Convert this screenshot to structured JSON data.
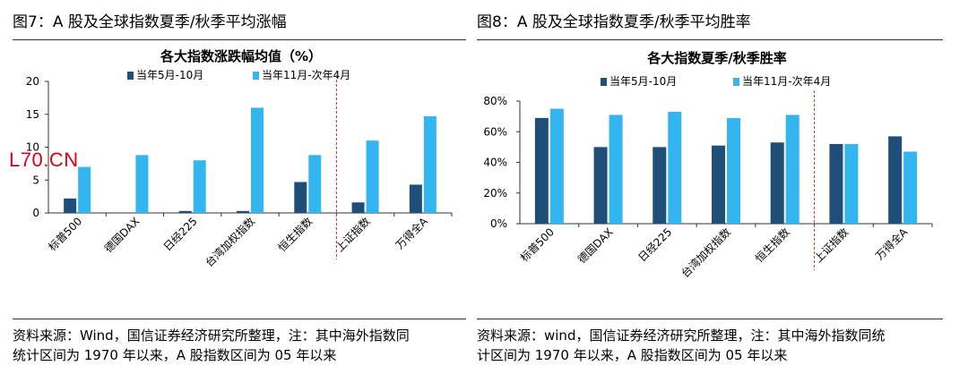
{
  "watermark": "L70.CN",
  "figures": [
    {
      "fig_title": "图7：A 股及全球指数夏季/秋季平均涨幅",
      "source_line1": "资料来源：Wind，国信证券经济研究所整理，注：其中海外指数同",
      "source_line2": "统计区间为 1970 年以来，A 股指数区间为 05 年以来"
    },
    {
      "fig_title": "图8：A 股及全球指数夏季/秋季平均胜率",
      "source_line1": "资料来源：wind，国信证券经济研究所整理，注：其中海外指数同统",
      "source_line2": "计区间为 1970 年以来，A 股指数区间为 05 年以来"
    }
  ],
  "colors": {
    "series1": "#1f4e79",
    "series2": "#33b5ef",
    "divider": "#c0392b"
  },
  "chart_data": [
    {
      "type": "bar",
      "title": "各大指数涨跌幅均值（%）",
      "categories": [
        "标普500",
        "德国DAX",
        "日经225",
        "台湾加权指数",
        "恒生指数",
        "上证指数",
        "万得全A"
      ],
      "series": [
        {
          "name": "当年5月-10月",
          "values": [
            2.2,
            0.0,
            0.3,
            0.3,
            4.7,
            1.6,
            4.3
          ]
        },
        {
          "name": "当年11月-次年4月",
          "values": [
            7.0,
            8.8,
            8.0,
            16.0,
            8.8,
            11.0,
            14.7
          ]
        }
      ],
      "yticks": [
        "0",
        "5",
        "10",
        "15",
        "20"
      ],
      "ylim": [
        0,
        20
      ],
      "legend": "top",
      "divider_after_category": 4
    },
    {
      "type": "bar",
      "title": "各大指数夏季/秋季胜率",
      "categories": [
        "标普500",
        "德国DAX",
        "日经225",
        "台湾加权指数",
        "恒生指数",
        "上证指数",
        "万得全A"
      ],
      "series": [
        {
          "name": "当年5月-10月",
          "values": [
            69,
            50,
            50,
            51,
            53,
            52,
            57
          ]
        },
        {
          "name": "当年11月-次年4月",
          "values": [
            75,
            71,
            73,
            69,
            71,
            52,
            47
          ]
        }
      ],
      "yticks": [
        "0%",
        "20%",
        "40%",
        "60%",
        "80%"
      ],
      "ylim": [
        0,
        80
      ],
      "legend": "top",
      "divider_after_category": 4
    }
  ]
}
